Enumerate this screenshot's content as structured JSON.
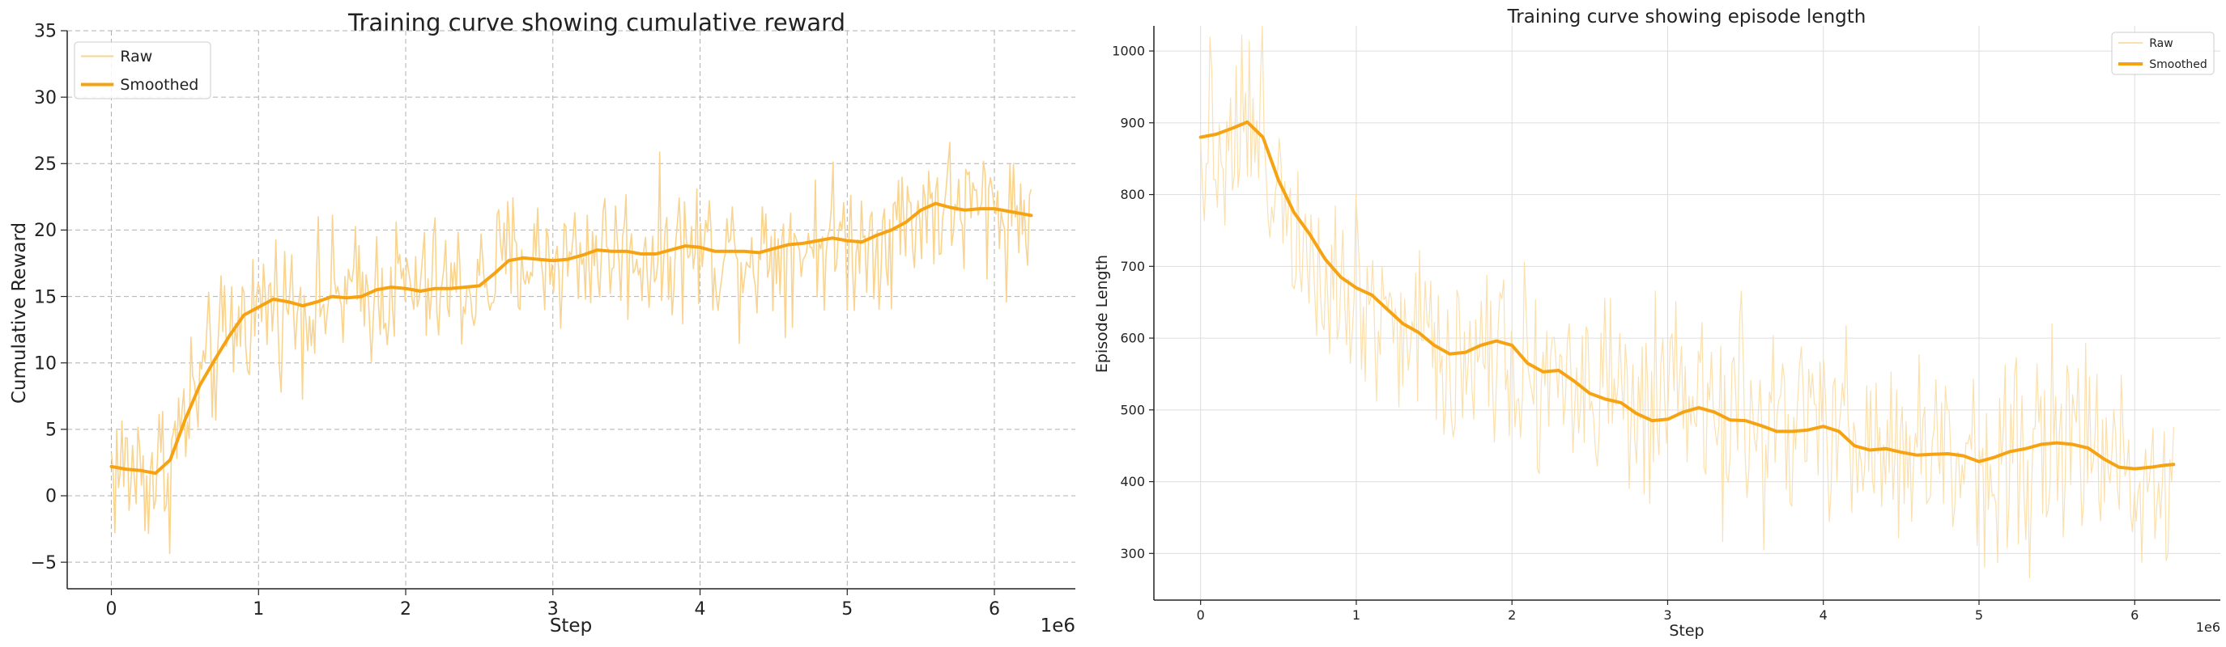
{
  "chart_data": [
    {
      "type": "line",
      "title": "Training curve showing cumulative reward",
      "xlabel": "Step",
      "ylabel": "Cumulative Reward",
      "x_offset_label": "1e6",
      "xlim": [
        -0.3,
        6.55
      ],
      "ylim": [
        -7,
        35
      ],
      "x_ticks": [
        0,
        1,
        2,
        3,
        4,
        5,
        6
      ],
      "y_ticks": [
        -5,
        0,
        5,
        10,
        15,
        20,
        25,
        30,
        35
      ],
      "grid": true,
      "grid_style": "dashed",
      "legend_position": "top-left",
      "series": [
        {
          "name": "Raw",
          "color": "#f9d48f",
          "x": [
            0.0,
            0.1,
            0.2,
            0.3,
            0.4,
            0.5,
            0.6,
            0.7,
            0.8,
            0.9,
            1.0,
            1.1,
            1.2,
            1.3,
            1.4,
            1.5,
            1.6,
            1.7,
            1.8,
            1.9,
            2.0,
            2.1,
            2.2,
            2.3,
            2.4,
            2.5,
            2.6,
            2.7,
            2.8,
            2.9,
            3.0,
            3.1,
            3.2,
            3.3,
            3.4,
            3.5,
            3.6,
            3.7,
            3.8,
            3.9,
            4.0,
            4.1,
            4.2,
            4.3,
            4.4,
            4.5,
            4.6,
            4.7,
            4.8,
            4.9,
            5.0,
            5.1,
            5.2,
            5.3,
            5.4,
            5.5,
            5.6,
            5.7,
            5.8,
            5.9,
            6.0,
            6.1,
            6.2,
            6.25
          ],
          "y": [
            2.2,
            2.0,
            1.9,
            1.7,
            2.7,
            5.7,
            8.3,
            10.2,
            12.0,
            13.6,
            14.2,
            14.8,
            14.6,
            14.3,
            14.6,
            15.0,
            14.9,
            15.0,
            15.5,
            15.7,
            15.6,
            15.4,
            15.6,
            15.6,
            15.7,
            15.8,
            16.7,
            17.7,
            17.9,
            17.8,
            17.7,
            17.8,
            18.1,
            18.5,
            18.4,
            18.4,
            18.2,
            18.2,
            18.5,
            18.8,
            18.7,
            18.4,
            18.4,
            18.4,
            18.3,
            18.6,
            18.9,
            19.0,
            19.2,
            19.4,
            19.2,
            19.1,
            19.6,
            20.0,
            20.6,
            21.5,
            22.0,
            21.7,
            21.5,
            21.6,
            21.6,
            21.4,
            21.2,
            21.1
          ]
        },
        {
          "name": "Smoothed",
          "color": "#f6a313",
          "x": [
            0.0,
            0.1,
            0.2,
            0.3,
            0.4,
            0.5,
            0.6,
            0.7,
            0.8,
            0.9,
            1.0,
            1.1,
            1.2,
            1.3,
            1.4,
            1.5,
            1.6,
            1.7,
            1.8,
            1.9,
            2.0,
            2.1,
            2.2,
            2.3,
            2.4,
            2.5,
            2.6,
            2.7,
            2.8,
            2.9,
            3.0,
            3.1,
            3.2,
            3.3,
            3.4,
            3.5,
            3.6,
            3.7,
            3.8,
            3.9,
            4.0,
            4.1,
            4.2,
            4.3,
            4.4,
            4.5,
            4.6,
            4.7,
            4.8,
            4.9,
            5.0,
            5.1,
            5.2,
            5.3,
            5.4,
            5.5,
            5.6,
            5.7,
            5.8,
            5.9,
            6.0,
            6.1,
            6.2,
            6.25
          ],
          "y": [
            2.2,
            2.0,
            1.9,
            1.7,
            2.7,
            5.7,
            8.3,
            10.2,
            12.0,
            13.6,
            14.2,
            14.8,
            14.6,
            14.3,
            14.6,
            15.0,
            14.9,
            15.0,
            15.5,
            15.7,
            15.6,
            15.4,
            15.6,
            15.6,
            15.7,
            15.8,
            16.7,
            17.7,
            17.9,
            17.8,
            17.7,
            17.8,
            18.1,
            18.5,
            18.4,
            18.4,
            18.2,
            18.2,
            18.5,
            18.8,
            18.7,
            18.4,
            18.4,
            18.4,
            18.3,
            18.6,
            18.9,
            19.0,
            19.2,
            19.4,
            19.2,
            19.1,
            19.6,
            20.0,
            20.6,
            21.5,
            22.0,
            21.7,
            21.5,
            21.6,
            21.6,
            21.4,
            21.2,
            21.1
          ]
        }
      ]
    },
    {
      "type": "line",
      "title": "Training curve showing episode length",
      "xlabel": "Step",
      "ylabel": "Episode Length",
      "x_offset_label": "1e6",
      "xlim": [
        -0.3,
        6.55
      ],
      "ylim": [
        235,
        1035
      ],
      "x_ticks": [
        0,
        1,
        2,
        3,
        4,
        5,
        6
      ],
      "y_ticks": [
        300,
        400,
        500,
        600,
        700,
        800,
        900,
        1000
      ],
      "grid": true,
      "grid_style": "solid",
      "legend_position": "top-right",
      "series": [
        {
          "name": "Raw",
          "color": "#fbe0ad",
          "x": [
            0.0,
            0.1,
            0.2,
            0.3,
            0.4,
            0.5,
            0.6,
            0.7,
            0.8,
            0.9,
            1.0,
            1.1,
            1.2,
            1.3,
            1.4,
            1.5,
            1.6,
            1.7,
            1.8,
            1.9,
            2.0,
            2.1,
            2.2,
            2.3,
            2.4,
            2.5,
            2.6,
            2.7,
            2.8,
            2.9,
            3.0,
            3.1,
            3.2,
            3.3,
            3.4,
            3.5,
            3.6,
            3.7,
            3.8,
            3.9,
            4.0,
            4.1,
            4.2,
            4.3,
            4.4,
            4.5,
            4.6,
            4.7,
            4.8,
            4.9,
            5.0,
            5.1,
            5.2,
            5.3,
            5.4,
            5.5,
            5.6,
            5.7,
            5.8,
            5.9,
            6.0,
            6.1,
            6.2,
            6.25
          ],
          "y": [
            880,
            884,
            892,
            901,
            880,
            820,
            775,
            745,
            710,
            685,
            670,
            660,
            640,
            620,
            608,
            590,
            578,
            580,
            590,
            596,
            590,
            565,
            553,
            555,
            540,
            523,
            515,
            510,
            495,
            485,
            487,
            497,
            503,
            497,
            486,
            485,
            478,
            470,
            470,
            472,
            477,
            470,
            450,
            444,
            446,
            441,
            437,
            438,
            439,
            436,
            428,
            434,
            442,
            446,
            452,
            454,
            452,
            447,
            432,
            420,
            418,
            420,
            423,
            424
          ]
        },
        {
          "name": "Smoothed",
          "color": "#f6a313",
          "x": [
            0.0,
            0.1,
            0.2,
            0.3,
            0.4,
            0.5,
            0.6,
            0.7,
            0.8,
            0.9,
            1.0,
            1.1,
            1.2,
            1.3,
            1.4,
            1.5,
            1.6,
            1.7,
            1.8,
            1.9,
            2.0,
            2.1,
            2.2,
            2.3,
            2.4,
            2.5,
            2.6,
            2.7,
            2.8,
            2.9,
            3.0,
            3.1,
            3.2,
            3.3,
            3.4,
            3.5,
            3.6,
            3.7,
            3.8,
            3.9,
            4.0,
            4.1,
            4.2,
            4.3,
            4.4,
            4.5,
            4.6,
            4.7,
            4.8,
            4.9,
            5.0,
            5.1,
            5.2,
            5.3,
            5.4,
            5.5,
            5.6,
            5.7,
            5.8,
            5.9,
            6.0,
            6.1,
            6.2,
            6.25
          ],
          "y": [
            880,
            884,
            892,
            901,
            880,
            820,
            775,
            745,
            710,
            685,
            670,
            660,
            640,
            620,
            608,
            590,
            578,
            580,
            590,
            596,
            590,
            565,
            553,
            555,
            540,
            523,
            515,
            510,
            495,
            485,
            487,
            497,
            503,
            497,
            486,
            485,
            478,
            470,
            470,
            472,
            477,
            470,
            450,
            444,
            446,
            441,
            437,
            438,
            439,
            436,
            428,
            434,
            442,
            446,
            452,
            454,
            452,
            447,
            432,
            420,
            418,
            420,
            423,
            424
          ]
        }
      ]
    }
  ]
}
